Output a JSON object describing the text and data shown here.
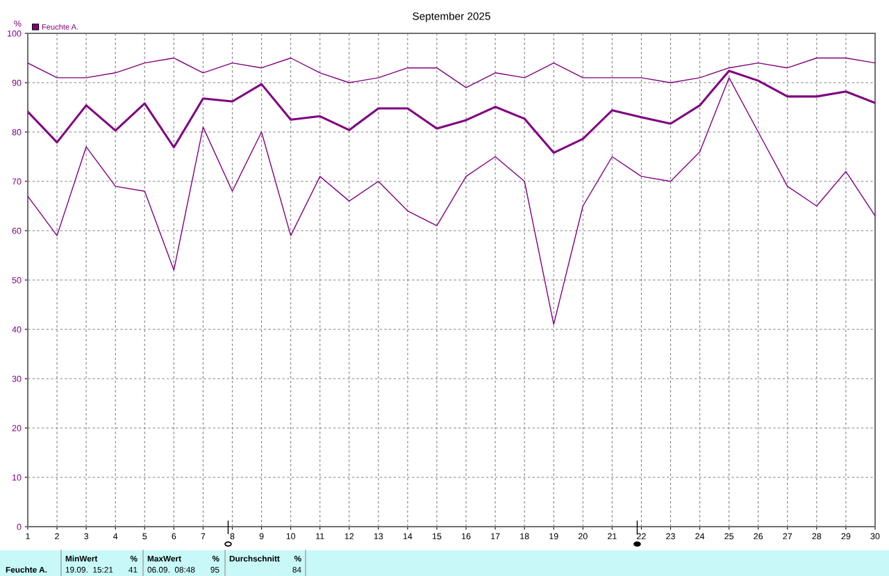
{
  "chart_data": {
    "type": "line",
    "title": "September 2025",
    "ylabel": "%",
    "x": [
      1,
      2,
      3,
      4,
      5,
      6,
      7,
      8,
      9,
      10,
      11,
      12,
      13,
      14,
      15,
      16,
      17,
      18,
      19,
      20,
      21,
      22,
      23,
      24,
      25,
      26,
      27,
      28,
      29,
      30
    ],
    "series": [
      {
        "name": "Feuchte A.",
        "color": "#800080",
        "values": [
          84.1,
          77.9,
          85.4,
          80.3,
          85.8,
          76.9,
          86.8,
          86.2,
          89.7,
          82.5,
          83.2,
          80.4,
          84.8,
          84.8,
          80.7,
          82.4,
          85.1,
          82.7,
          75.8,
          78.6,
          84.4,
          83.0,
          81.7,
          85.4,
          92.4,
          90.4,
          87.2,
          87.2,
          88.2,
          85.9
        ]
      },
      {
        "color": "#800080",
        "values": [
          94,
          91,
          91,
          92,
          94,
          95,
          92,
          94,
          93,
          95,
          92,
          90,
          91,
          93,
          93,
          89,
          92,
          91,
          94,
          91,
          91,
          91,
          90,
          91,
          93,
          94,
          93,
          95,
          95,
          94
        ]
      },
      {
        "color": "#800080",
        "values": [
          67,
          59,
          77,
          69,
          68,
          52,
          81,
          68,
          80,
          59,
          71,
          66,
          70,
          64,
          61,
          71,
          75,
          70,
          41,
          65,
          75,
          71,
          70,
          76,
          91,
          80,
          69,
          65,
          72,
          63
        ]
      }
    ],
    "xlim": [
      1,
      30
    ],
    "xticks": [
      1,
      2,
      3,
      4,
      5,
      6,
      7,
      8,
      9,
      10,
      11,
      12,
      13,
      14,
      15,
      16,
      17,
      18,
      19,
      20,
      21,
      22,
      23,
      24,
      25,
      26,
      27,
      28,
      29,
      30
    ],
    "ylim": [
      0,
      100
    ],
    "yticks": [
      0,
      10,
      20,
      30,
      40,
      50,
      60,
      70,
      80,
      90,
      100
    ],
    "grid": true,
    "legend": "top left",
    "marker": "none",
    "line_style": "solid",
    "annotations": [
      "Feuchte A.",
      "MinWert",
      "%",
      "19.09.  15:21",
      "41",
      "MaxWert",
      "%",
      "06.09.  08:48",
      "95",
      "Durchschnitt",
      "%",
      "84"
    ]
  }
}
